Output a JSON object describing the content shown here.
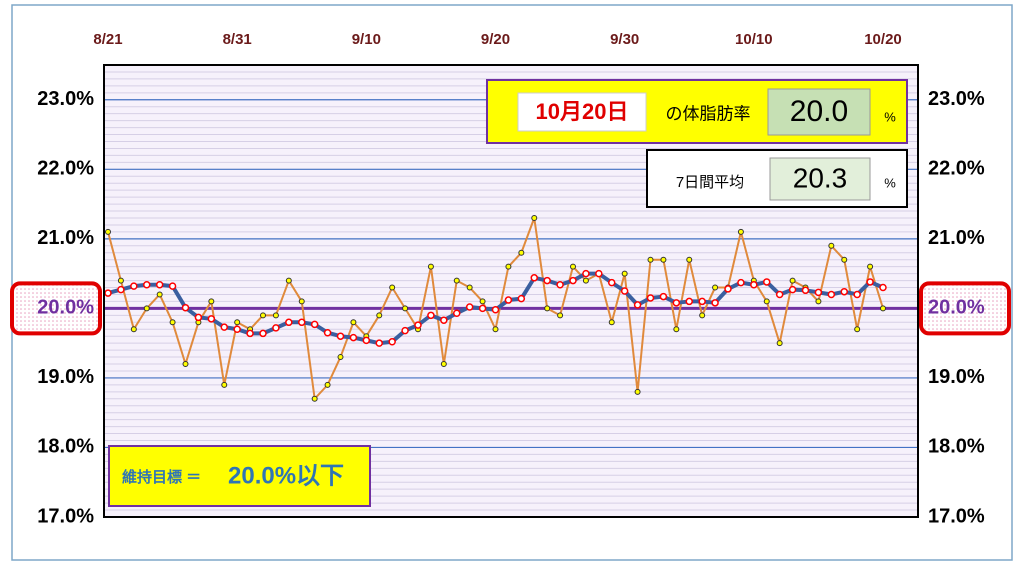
{
  "chart_data": {
    "type": "line",
    "categories": [
      "8/21",
      null,
      null,
      null,
      null,
      null,
      null,
      null,
      null,
      null,
      "8/31",
      null,
      null,
      null,
      null,
      null,
      null,
      null,
      null,
      null,
      "9/10",
      null,
      null,
      null,
      null,
      null,
      null,
      null,
      null,
      null,
      "9/20",
      null,
      null,
      null,
      null,
      null,
      null,
      null,
      null,
      null,
      "9/30",
      null,
      null,
      null,
      null,
      null,
      null,
      null,
      null,
      null,
      "10/10",
      null,
      null,
      null,
      null,
      null,
      null,
      null,
      null,
      null,
      "10/20"
    ],
    "series": [
      {
        "color": "#e08a3c",
        "marker_color": "#ffff00",
        "values": [
          21.1,
          20.4,
          19.7,
          20.0,
          20.2,
          19.8,
          19.2,
          19.8,
          20.1,
          18.9,
          19.8,
          19.7,
          19.9,
          19.9,
          20.4,
          20.1,
          18.7,
          18.9,
          19.3,
          19.8,
          19.6,
          19.9,
          20.3,
          20.0,
          19.7,
          20.6,
          19.2,
          20.4,
          20.3,
          20.1,
          19.7,
          20.6,
          20.8,
          21.3,
          20.0,
          19.9,
          20.6,
          20.4,
          20.5,
          19.8,
          20.5,
          18.8,
          20.7,
          20.7,
          19.7,
          20.7,
          19.9,
          20.3,
          20.3,
          21.1,
          20.4,
          20.1,
          19.5,
          20.4,
          20.3,
          20.1,
          20.9,
          20.7,
          19.7,
          20.6,
          20.0
        ]
      },
      {
        "color": "#3a5fa0",
        "marker_color": "#ff0000",
        "values": [
          20.22,
          20.27,
          20.32,
          20.34,
          20.34,
          20.32,
          20.01,
          19.87,
          19.85,
          19.73,
          19.7,
          19.64,
          19.64,
          19.72,
          19.8,
          19.8,
          19.77,
          19.65,
          19.6,
          19.58,
          19.54,
          19.5,
          19.52,
          19.68,
          19.76,
          19.9,
          19.83,
          19.93,
          20.02,
          20.0,
          19.98,
          20.12,
          20.14,
          20.44,
          20.4,
          20.34,
          20.4,
          20.5,
          20.5,
          20.37,
          20.25,
          20.05,
          20.15,
          20.17,
          20.08,
          20.1,
          20.1,
          20.08,
          20.28,
          20.37,
          20.34,
          20.38,
          20.2,
          20.27,
          20.26,
          20.23,
          20.2,
          20.24,
          20.2,
          20.38,
          20.3
        ]
      }
    ],
    "ylim": [
      17,
      23.5
    ],
    "yticks": [
      {
        "value": 17,
        "label": "17.0%"
      },
      {
        "value": 18,
        "label": "18.0%"
      },
      {
        "value": 19,
        "label": "19.0%"
      },
      {
        "value": 20,
        "label": "20.0%"
      },
      {
        "value": 21,
        "label": "21.0%"
      },
      {
        "value": 22,
        "label": "22.0%"
      },
      {
        "value": 23,
        "label": "23.0%"
      }
    ],
    "grid": true,
    "minor_grid_step": 0.1,
    "target": {
      "value": 20,
      "color": "#7030a0"
    },
    "annotations": {
      "current": {
        "date": "10月20日",
        "label": "の体脂肪率",
        "value": "20.0",
        "unit": "%"
      },
      "average": {
        "label": "7日間平均",
        "value": "20.3",
        "unit": "%"
      },
      "goal": {
        "label": "維持目標 ＝",
        "value": "20.0%以下"
      }
    }
  }
}
